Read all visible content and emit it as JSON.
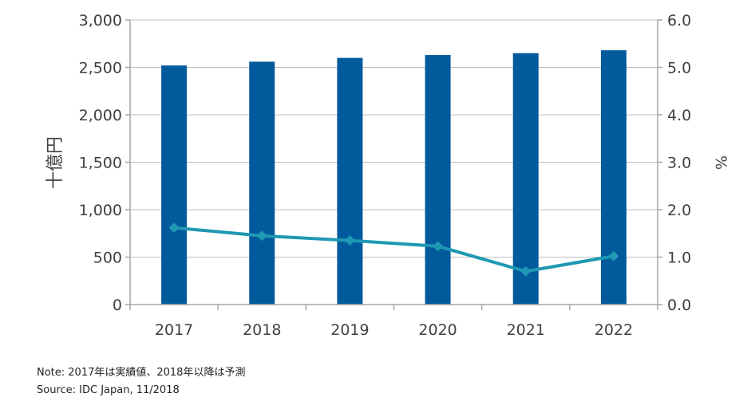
{
  "chart_data": {
    "type": "bar",
    "categories": [
      "2017",
      "2018",
      "2019",
      "2020",
      "2021",
      "2022"
    ],
    "series": [
      {
        "type": "bar",
        "axis": "left",
        "color": "#005a9c",
        "values": [
          2520,
          2560,
          2600,
          2630,
          2650,
          2680
        ]
      },
      {
        "type": "line",
        "axis": "right",
        "color": "#1f98b3",
        "values": [
          1.62,
          1.45,
          1.35,
          1.23,
          0.7,
          1.02
        ]
      }
    ],
    "ylabel": "十億円",
    "ylabel_right": "%",
    "ylim": [
      0,
      3000
    ],
    "ylim_right": [
      0,
      6.0
    ],
    "yticks": [
      "0",
      "500",
      "1,000",
      "1,500",
      "2,000",
      "2,500",
      "3,000"
    ],
    "yticks_right": [
      "0.0",
      "1.0",
      "2.0",
      "3.0",
      "4.0",
      "5.0",
      "6.0"
    ],
    "grid": true,
    "legend": "none"
  },
  "notes": {
    "note": "Note: 2017年は実績値、2018年以降は予測",
    "source": "Source: IDC Japan, 11/2018"
  }
}
